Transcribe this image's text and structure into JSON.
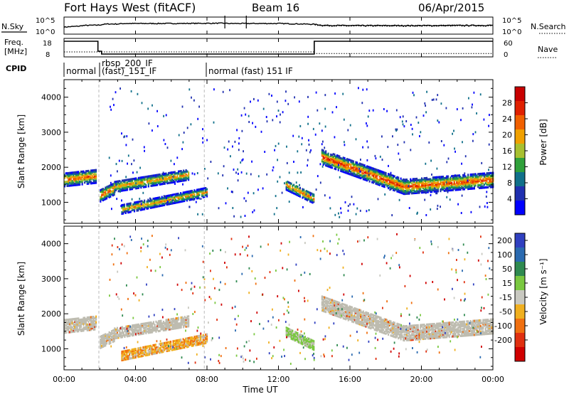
{
  "header": {
    "title": "Fort Hays West (fitACF)",
    "beam": "Beam 16",
    "date": "06/Apr/2015"
  },
  "chart_data": [
    {
      "type": "line",
      "panel": "noise",
      "left_label": "N.Sky",
      "right_label": "N.Search",
      "left_ticks": [
        "10^5",
        "10^0"
      ],
      "right_ticks": [
        "10^5",
        "10^0"
      ],
      "x_hours": [
        0,
        0.9,
        1.0,
        2.0,
        2.2,
        2.5,
        3.0,
        3.3,
        6.0,
        9.0,
        9.2,
        12.0,
        14.0,
        14.5,
        16.0,
        20.0,
        24.0
      ],
      "n_sky": [
        2.2,
        2.6,
        2.8,
        3.0,
        3.3,
        3.4,
        3.4,
        3.6,
        3.6,
        3.7,
        3.6,
        3.6,
        3.3,
        2.9,
        2.8,
        2.8,
        2.9
      ]
    },
    {
      "type": "line",
      "panel": "frequency",
      "left_label_line1": "Freq.",
      "left_label_line2": "[MHz]",
      "right_label": "Nave",
      "left_ticks": [
        "18",
        "8"
      ],
      "right_ticks": [
        "60",
        "0"
      ],
      "freq_segments": [
        {
          "from": 0,
          "to": 1.9,
          "value": 18
        },
        {
          "from": 1.9,
          "to": 2.1,
          "value": 11
        },
        {
          "from": 2.1,
          "to": 14.0,
          "value": 9
        },
        {
          "from": 14.0,
          "to": 24.0,
          "value": 18
        }
      ],
      "nave": [
        {
          "from": 0,
          "to": 14.0,
          "value": 15
        },
        {
          "from": 14.0,
          "to": 24.0,
          "value": 8
        }
      ]
    },
    {
      "type": "table",
      "panel": "cpid",
      "label": "CPID",
      "segments": [
        {
          "hour": 0.0,
          "line1": "",
          "line2": "normal"
        },
        {
          "hour": 2.0,
          "line1": "rbsp_200_IF",
          "line2": "(fast)_151_IF"
        },
        {
          "hour": 7.8,
          "line1": "",
          "line2": "normal (fast) 151 IF"
        }
      ]
    },
    {
      "type": "heatmap",
      "panel": "power",
      "ylabel": "Slant Range [km]",
      "yticks": [
        1000,
        2000,
        3000,
        4000
      ],
      "ylim": [
        400,
        4500
      ],
      "colorbar_label": "Power [dB]",
      "colorbar_ticks": [
        4,
        8,
        12,
        16,
        20,
        24,
        28
      ],
      "colors": [
        "#0000ff",
        "#2030b0",
        "#10708a",
        "#2fa03a",
        "#a8c030",
        "#f0a000",
        "#f06000",
        "#e02000",
        "#c80000"
      ],
      "bands": [
        {
          "from": 0.0,
          "to": 1.8,
          "center_start": 1650,
          "center_end": 1750,
          "width": 380,
          "level": 0.8
        },
        {
          "from": 2.0,
          "to": 2.8,
          "center_start": 1200,
          "center_end": 1400,
          "width": 350,
          "level": 0.8
        },
        {
          "from": 2.8,
          "to": 7.0,
          "center_start": 1450,
          "center_end": 1800,
          "width": 300,
          "level": 0.7
        },
        {
          "from": 3.2,
          "to": 8.0,
          "center_start": 800,
          "center_end": 1300,
          "width": 250,
          "level": 0.7
        },
        {
          "from": 12.4,
          "to": 14.0,
          "center_start": 1500,
          "center_end": 1100,
          "width": 280,
          "level": 0.8
        },
        {
          "from": 14.4,
          "to": 19.0,
          "center_start": 2300,
          "center_end": 1450,
          "width": 420,
          "level": 0.9
        },
        {
          "from": 19.0,
          "to": 24.0,
          "center_start": 1450,
          "center_end": 1650,
          "width": 420,
          "level": 0.85
        }
      ]
    },
    {
      "type": "heatmap",
      "panel": "velocity",
      "ylabel": "Slant Range [km]",
      "yticks": [
        1000,
        2000,
        3000,
        4000
      ],
      "ylim": [
        400,
        4500
      ],
      "colorbar_label": "Velocity [m s⁻¹]",
      "colorbar_ticks": [
        200,
        100,
        50,
        15,
        -15,
        -50,
        -100,
        -200
      ],
      "colors": [
        "#3040c0",
        "#2a6ab0",
        "#2f8a50",
        "#7ac840",
        "#c8c8c0",
        "#f0b020",
        "#f07010",
        "#e03010",
        "#d00000"
      ],
      "ground_color": "#bebcb0",
      "bands": [
        {
          "from": 0.0,
          "to": 1.8,
          "center_start": 1650,
          "center_end": 1750,
          "width": 380,
          "color": "ground"
        },
        {
          "from": 2.0,
          "to": 2.8,
          "center_start": 1200,
          "center_end": 1400,
          "width": 350,
          "color": "ground"
        },
        {
          "from": 2.8,
          "to": 7.0,
          "center_start": 1450,
          "center_end": 1800,
          "width": 300,
          "color": "ground"
        },
        {
          "from": 3.2,
          "to": 8.0,
          "center_start": 800,
          "center_end": 1300,
          "width": 250,
          "color": "orange"
        },
        {
          "from": 12.4,
          "to": 14.0,
          "center_start": 1500,
          "center_end": 1100,
          "width": 280,
          "color": "green"
        },
        {
          "from": 14.4,
          "to": 19.0,
          "center_start": 2300,
          "center_end": 1450,
          "width": 420,
          "color": "ground"
        },
        {
          "from": 19.0,
          "to": 24.0,
          "center_start": 1450,
          "center_end": 1650,
          "width": 420,
          "color": "ground"
        }
      ]
    }
  ],
  "x_axis": {
    "label": "Time UT",
    "ticks": [
      0,
      4,
      8,
      12,
      16,
      20,
      24
    ],
    "tick_labels": [
      "00:00",
      "04:00",
      "08:00",
      "12:00",
      "16:00",
      "20:00",
      "00:00"
    ],
    "xlim": [
      0,
      24
    ]
  }
}
